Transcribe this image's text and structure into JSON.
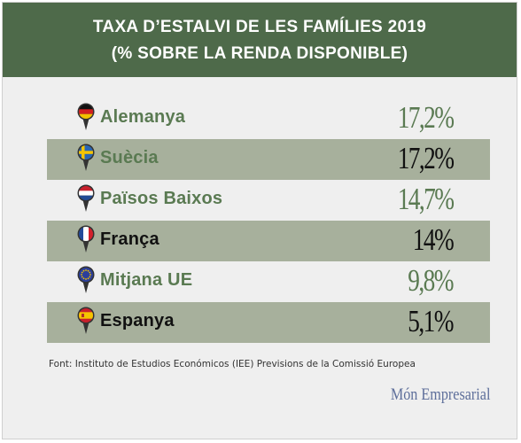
{
  "chart_data": {
    "type": "table",
    "title": "TAXA D’ESTALVI DE LES FAMÍLIES 2019",
    "subtitle": "(% SOBRE LA RENDA DISPONIBLE)",
    "rows": [
      {
        "label": "Alemanya",
        "value_text": "17,2%",
        "value": 17.2,
        "flag": "germany-flag-icon"
      },
      {
        "label": "Suècia",
        "value_text": "17,2%",
        "value": 17.2,
        "flag": "sweden-flag-icon"
      },
      {
        "label": "Països Baixos",
        "value_text": "14,7%",
        "value": 14.7,
        "flag": "netherlands-flag-icon"
      },
      {
        "label": "França",
        "value_text": "14%",
        "value": 14,
        "flag": "france-flag-icon"
      },
      {
        "label": "Mitjana UE",
        "value_text": "9,8%",
        "value": 9.8,
        "flag": "eu-flag-icon"
      },
      {
        "label": "Espanya",
        "value_text": "5,1%",
        "value": 5.1,
        "flag": "spain-flag-icon"
      }
    ],
    "source": "Font: Instituto de Estudios Económicos (IEE) Previsions de la Comissió Europea"
  },
  "brand": "Món Empresarial",
  "colors": {
    "header": "#4e6a4a",
    "label_green": "#5a7a52",
    "label_dark": "#111111",
    "band": "#a7b09c"
  }
}
